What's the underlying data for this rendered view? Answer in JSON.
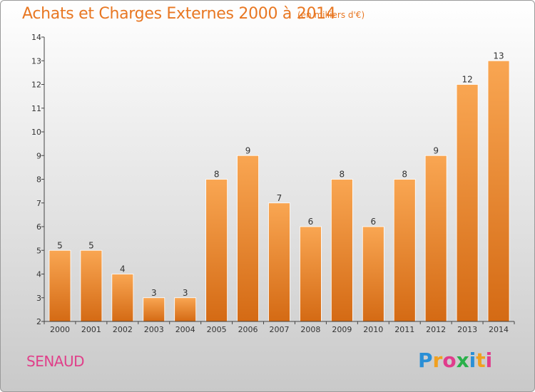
{
  "header": {
    "title": "Achats et Charges Externes 2000 à 2014",
    "subtitle": "(en milliers d'€)"
  },
  "footer": {
    "commune": "SENAUD",
    "logo_letters": [
      "P",
      "r",
      "o",
      "x",
      "i",
      "t",
      "i"
    ],
    "logo_colors": [
      "#2a8fd6",
      "#f0a020",
      "#e03c8c",
      "#2ab04a",
      "#2a8fd6",
      "#f0a020",
      "#e03c8c"
    ]
  },
  "colors": {
    "bar_light": "#f9a652",
    "bar_dark": "#d46a14",
    "axis": "#444444",
    "grid": "#d0d0d0",
    "text": "#333333",
    "accent": "#e87722"
  },
  "chart_data": {
    "type": "bar",
    "title": "Achats et Charges Externes 2000 à 2014",
    "subtitle": "(en milliers d'€)",
    "xlabel": "",
    "ylabel": "",
    "categories": [
      "2000",
      "2001",
      "2002",
      "2003",
      "2004",
      "2005",
      "2006",
      "2007",
      "2008",
      "2009",
      "2010",
      "2011",
      "2012",
      "2013",
      "2014"
    ],
    "values": [
      5,
      5,
      4,
      3,
      3,
      8,
      9,
      7,
      6,
      8,
      6,
      8,
      9,
      12,
      13
    ],
    "data_labels": [
      "5",
      "5",
      "4",
      "3",
      "3",
      "8",
      "9",
      "7",
      "6",
      "8",
      "6",
      "8",
      "9",
      "12",
      "13"
    ],
    "ylim": [
      2,
      14
    ],
    "yticks": [
      2,
      3,
      4,
      5,
      6,
      7,
      8,
      9,
      10,
      11,
      12,
      13,
      14
    ],
    "grid": false,
    "legend": "none"
  }
}
